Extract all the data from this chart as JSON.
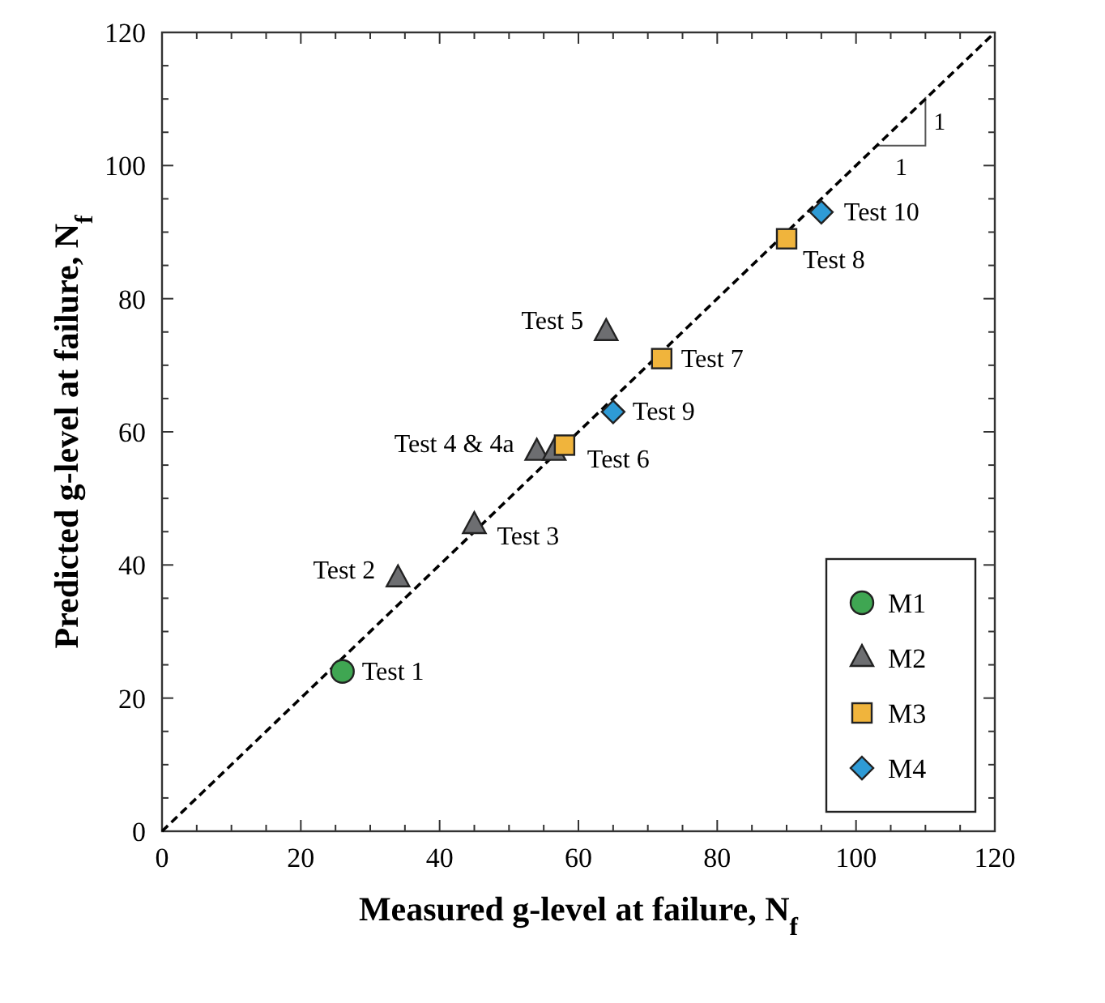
{
  "chart_data": {
    "type": "scatter",
    "xlabel": "Measured g-level at failure, N$_{f}$",
    "ylabel": "Predicted g-level at failure, N$_{f}$",
    "xlim": [
      0,
      120
    ],
    "ylim": [
      0,
      120
    ],
    "xticks": [
      0,
      {
        "value": 5,
        "label": null
      },
      {
        "value": 10,
        "label": null
      },
      {
        "value": 15,
        "label": null
      },
      20,
      {
        "value": 25,
        "label": null
      },
      {
        "value": 30,
        "label": null
      },
      {
        "value": 35,
        "label": null
      },
      40,
      {
        "value": 45,
        "label": null
      },
      {
        "value": 50,
        "label": null
      },
      {
        "value": 55,
        "label": null
      },
      60,
      {
        "value": 65,
        "label": null
      },
      {
        "value": 70,
        "label": null
      },
      {
        "value": 75,
        "label": null
      },
      80,
      {
        "value": 85,
        "label": null
      },
      {
        "value": 90,
        "label": null
      },
      {
        "value": 95,
        "label": null
      },
      100,
      {
        "value": 105,
        "label": null
      },
      {
        "value": 110,
        "label": null
      },
      {
        "value": 115,
        "label": null
      },
      120
    ],
    "yticks": [
      0,
      {
        "value": 5,
        "label": null
      },
      {
        "value": 10,
        "label": null
      },
      {
        "value": 15,
        "label": null
      },
      20,
      {
        "value": 25,
        "label": null
      },
      {
        "value": 30,
        "label": null
      },
      {
        "value": 35,
        "label": null
      },
      40,
      {
        "value": 45,
        "label": null
      },
      {
        "value": 50,
        "label": null
      },
      {
        "value": 55,
        "label": null
      },
      60,
      {
        "value": 65,
        "label": null
      },
      {
        "value": 70,
        "label": null
      },
      {
        "value": 75,
        "label": null
      },
      80,
      {
        "value": 85,
        "label": null
      },
      {
        "value": 90,
        "label": null
      },
      {
        "value": 95,
        "label": null
      },
      100,
      {
        "value": 105,
        "label": null
      },
      {
        "value": 110,
        "label": null
      },
      {
        "value": 115,
        "label": null
      },
      120
    ],
    "grid": false,
    "legend": "bottom right",
    "series": [
      {
        "type": "line",
        "x": [
          0,
          120
        ],
        "values": [
          0,
          120
        ],
        "color": "#000000",
        "line_style": "dashed",
        "marker": "none"
      },
      {
        "name": "M1",
        "color": "#3fa652",
        "marker": "circle",
        "x": [
          26
        ],
        "values": [
          24
        ]
      },
      {
        "name": "M2",
        "color": "#6d6e71",
        "marker": "triangle",
        "x": [
          34,
          45,
          54,
          56.5,
          64
        ],
        "values": [
          38,
          46,
          57,
          57,
          75
        ]
      },
      {
        "name": "M3",
        "color": "#f0b43c",
        "marker": "square",
        "x": [
          58,
          72,
          90
        ],
        "values": [
          58,
          71,
          89
        ]
      },
      {
        "name": "M4",
        "color": "#2e9bd6",
        "marker": "diamond",
        "x": [
          65,
          95
        ],
        "values": [
          63,
          93
        ]
      }
    ],
    "annotations": [
      {
        "text": "Test 1",
        "x": 26,
        "y": 24
      },
      {
        "text": "Test 2",
        "x": 34,
        "y": 38
      },
      {
        "text": "Test 3",
        "x": 45,
        "y": 46
      },
      {
        "text": "Test 4 & 4a",
        "x": 54,
        "y": 57
      },
      {
        "text": "Test 5",
        "x": 64,
        "y": 75
      },
      {
        "text": "Test 6",
        "x": 58,
        "y": 58
      },
      {
        "text": "Test 7",
        "x": 72,
        "y": 71
      },
      {
        "text": "Test 8",
        "x": 90,
        "y": 89
      },
      {
        "text": "Test 9",
        "x": 65,
        "y": 63
      },
      {
        "text": "Test 10",
        "x": 95,
        "y": 93
      },
      "1",
      "1"
    ]
  }
}
